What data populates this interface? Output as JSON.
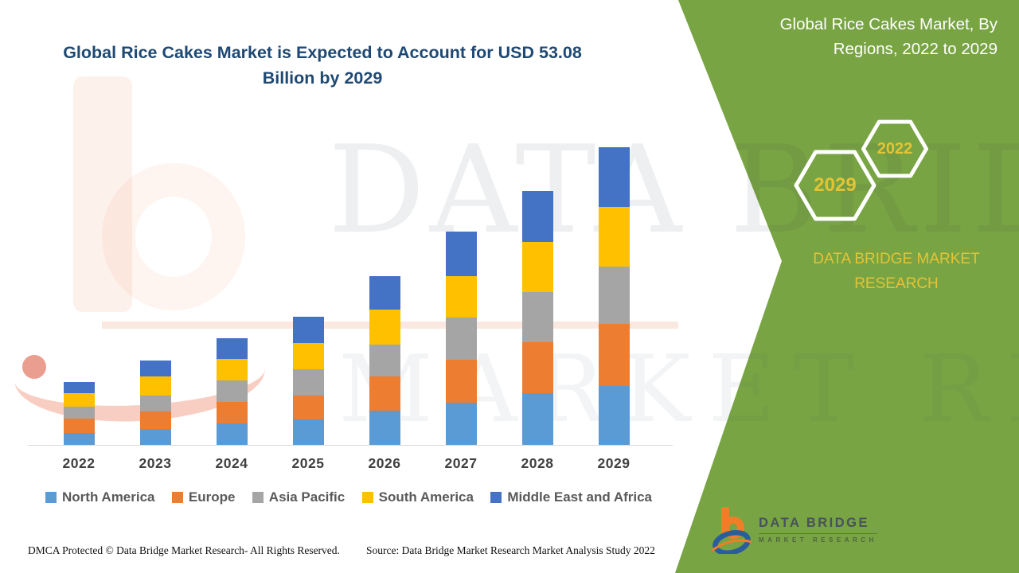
{
  "theme": {
    "green": "#78A443",
    "gold": "#E3C436",
    "navy": "#1F4973",
    "axis_line": "#D9D9D9",
    "white": "#FFFFFF"
  },
  "header": {
    "title_line1": "Global Rice Cakes Market is Expected to Account for USD 53.08",
    "title_line2": "Billion by 2029"
  },
  "side_panel": {
    "title_line1": "Global Rice Cakes Market, By",
    "title_line2": "Regions, 2022 to 2029",
    "hexagon_back_label": "2029",
    "hexagon_front_label": "2022",
    "brand_caption": "DATA BRIDGE MARKET RESEARCH"
  },
  "watermark": {
    "line1": "DATA BRIDGE",
    "line2": "MARKET RESEARCH"
  },
  "chart_data": {
    "type": "bar",
    "stacked": true,
    "title": "Global Rice Cakes Market, By Regions, 2022 to 2029",
    "unit": "USD Billion",
    "categories": [
      "2022",
      "2023",
      "2024",
      "2025",
      "2026",
      "2027",
      "2028",
      "2029"
    ],
    "series": [
      {
        "name": "North America",
        "color": "#5B9BD5",
        "values": [
          2.13,
          2.84,
          3.83,
          4.54,
          6.1,
          7.52,
          9.23,
          10.5
        ]
      },
      {
        "name": "Europe",
        "color": "#ED7D31",
        "values": [
          2.55,
          3.12,
          3.83,
          4.26,
          6.1,
          7.66,
          9.08,
          11.07
        ]
      },
      {
        "name": "Asia Pacific",
        "color": "#A5A5A5",
        "values": [
          2.13,
          2.84,
          3.83,
          4.68,
          5.68,
          7.52,
          8.94,
          10.22
        ]
      },
      {
        "name": "South America",
        "color": "#FFC000",
        "values": [
          2.41,
          3.41,
          3.83,
          4.68,
          6.25,
          7.38,
          8.94,
          10.64
        ]
      },
      {
        "name": "Middle East and Africa",
        "color": "#4472C4",
        "values": [
          1.99,
          2.84,
          3.69,
          4.68,
          5.96,
          7.95,
          9.08,
          10.64
        ]
      }
    ],
    "totals": [
      11.21,
      15.05,
      19.01,
      22.84,
      30.09,
      38.03,
      45.27,
      53.08
    ],
    "ylim": [
      0,
      55
    ],
    "grid": false,
    "y_axis_visible": false,
    "legend_position": "bottom"
  },
  "logo": {
    "brand": "DATA BRIDGE",
    "subtitle": "MARKET RESEARCH"
  },
  "footer": {
    "dmca": "DMCA Protected © Data Bridge Market Research- All Rights Reserved.",
    "source": "Source: Data Bridge Market Research Market Analysis Study 2022"
  }
}
